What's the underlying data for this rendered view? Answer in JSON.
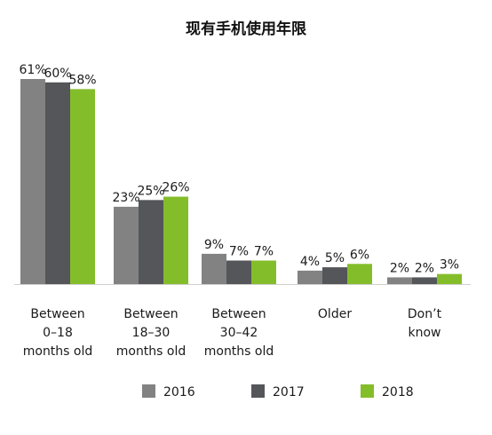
{
  "chart_data": {
    "type": "bar",
    "title": "现有手机使用年限",
    "categories": [
      [
        "Between",
        "0–18",
        "months old"
      ],
      [
        "Between",
        "18–30",
        "months old"
      ],
      [
        "Between",
        "30–42",
        "months old"
      ],
      [
        "Older"
      ],
      [
        "Don’t",
        "know"
      ]
    ],
    "series": [
      {
        "name": "2016",
        "color": "#828282",
        "values": [
          61,
          23,
          9,
          4,
          2
        ]
      },
      {
        "name": "2017",
        "color": "#545659",
        "values": [
          60,
          25,
          7,
          5,
          2
        ]
      },
      {
        "name": "2018",
        "color": "#84bd2a",
        "values": [
          58,
          26,
          7,
          6,
          3
        ]
      }
    ],
    "value_suffix": "%",
    "ylim": [
      0,
      61
    ],
    "grid": false,
    "legend_position": "bottom"
  }
}
